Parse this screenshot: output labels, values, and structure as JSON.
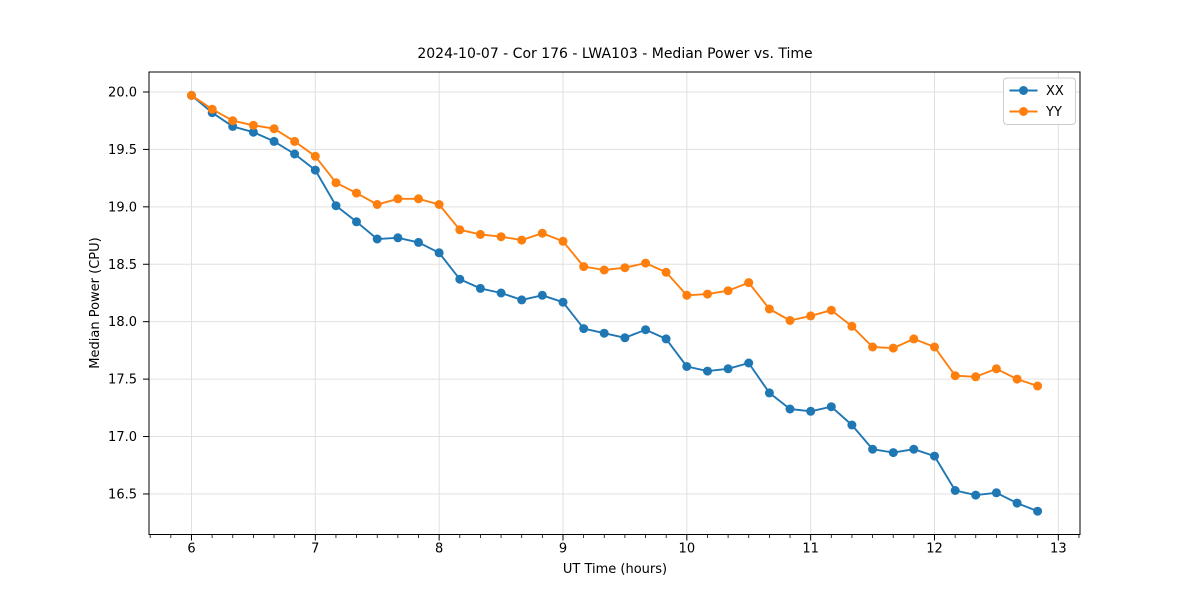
{
  "figure": {
    "background": "#ffffff"
  },
  "chart_data": {
    "type": "line",
    "title": "2024-10-07 - Cor 176 - LWA103 - Median Power vs. Time",
    "xlabel": "UT Time (hours)",
    "ylabel": "Median Power (CPU)",
    "xlim": [
      5.657,
      13.175
    ],
    "ylim": [
      16.147,
      20.174
    ],
    "x_ticks": [
      6,
      7,
      8,
      9,
      10,
      11,
      12,
      13
    ],
    "x_minor_tick_step_hours": 0.1667,
    "y_ticks": [
      16.5,
      17.0,
      17.5,
      18.0,
      18.5,
      19.0,
      19.5,
      20.0
    ],
    "grid": true,
    "legend_position": "upper right",
    "x": [
      6.0,
      6.167,
      6.333,
      6.5,
      6.667,
      6.833,
      7.0,
      7.167,
      7.333,
      7.5,
      7.667,
      7.833,
      8.0,
      8.167,
      8.333,
      8.5,
      8.667,
      8.833,
      9.0,
      9.167,
      9.333,
      9.5,
      9.667,
      9.833,
      10.0,
      10.167,
      10.333,
      10.5,
      10.667,
      10.833,
      11.0,
      11.167,
      11.333,
      11.5,
      11.667,
      11.833,
      12.0,
      12.167,
      12.333,
      12.5,
      12.667,
      12.833
    ],
    "series": [
      {
        "name": "XX",
        "color": "#1f77b4",
        "values": [
          19.97,
          19.82,
          19.7,
          19.65,
          19.57,
          19.46,
          19.32,
          19.01,
          18.87,
          18.72,
          18.73,
          18.69,
          18.6,
          18.37,
          18.29,
          18.25,
          18.19,
          18.23,
          18.17,
          17.94,
          17.9,
          17.86,
          17.93,
          17.85,
          17.61,
          17.57,
          17.59,
          17.64,
          17.38,
          17.24,
          17.22,
          17.26,
          17.1,
          16.89,
          16.86,
          16.89,
          16.83,
          16.53,
          16.49,
          16.51,
          16.42,
          16.35
        ]
      },
      {
        "name": "YY",
        "color": "#ff7f0e",
        "values": [
          19.97,
          19.85,
          19.75,
          19.71,
          19.68,
          19.57,
          19.44,
          19.21,
          19.12,
          19.02,
          19.07,
          19.07,
          19.02,
          18.8,
          18.76,
          18.74,
          18.71,
          18.77,
          18.7,
          18.48,
          18.45,
          18.47,
          18.51,
          18.43,
          18.23,
          18.24,
          18.27,
          18.34,
          18.11,
          18.01,
          18.05,
          18.1,
          17.96,
          17.78,
          17.77,
          17.85,
          17.78,
          17.53,
          17.52,
          17.59,
          17.5,
          17.44
        ]
      }
    ]
  },
  "style": {
    "grid_color": "#e0e0e0",
    "axis_color": "#000000",
    "legend_border_color": "#cccccc",
    "line_width": 1.9,
    "marker_radius": 4.5
  }
}
